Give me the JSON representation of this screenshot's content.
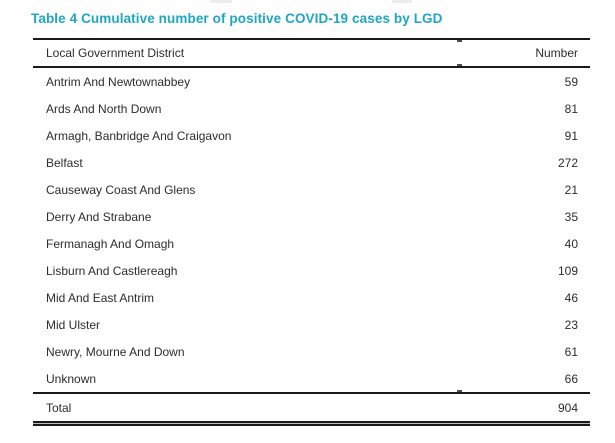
{
  "title": "Table 4 Cumulative number of positive COVID-19 cases by LGD",
  "table": {
    "header": {
      "district": "Local Government District",
      "number": "Number"
    },
    "rows": [
      {
        "district": "Antrim And Newtownabbey",
        "number": "59"
      },
      {
        "district": "Ards And North Down",
        "number": "81"
      },
      {
        "district": "Armagh, Banbridge And Craigavon",
        "number": "91"
      },
      {
        "district": "Belfast",
        "number": "272"
      },
      {
        "district": "Causeway Coast And Glens",
        "number": "21"
      },
      {
        "district": "Derry And Strabane",
        "number": "35"
      },
      {
        "district": "Fermanagh And Omagh",
        "number": "40"
      },
      {
        "district": "Lisburn And Castlereagh",
        "number": "109"
      },
      {
        "district": "Mid And East Antrim",
        "number": "46"
      },
      {
        "district": "Mid Ulster",
        "number": "23"
      },
      {
        "district": "Newry, Mourne And Down",
        "number": "61"
      },
      {
        "district": "Unknown",
        "number": "66"
      }
    ],
    "total": {
      "label": "Total",
      "number": "904"
    }
  },
  "colors": {
    "title_teal": "#20a6c3",
    "body_text": "#2d2d2d",
    "rule": "#1a1a1a"
  },
  "chart_data": {
    "type": "table",
    "title": "Table 4 Cumulative number of positive COVID-19 cases by LGD",
    "columns": [
      "Local Government District",
      "Number"
    ],
    "categories": [
      "Antrim And Newtownabbey",
      "Ards And North Down",
      "Armagh, Banbridge And Craigavon",
      "Belfast",
      "Causeway Coast And Glens",
      "Derry And Strabane",
      "Fermanagh And Omagh",
      "Lisburn And Castlereagh",
      "Mid And East Antrim",
      "Mid Ulster",
      "Newry, Mourne And Down",
      "Unknown"
    ],
    "values": [
      59,
      81,
      91,
      272,
      21,
      35,
      40,
      109,
      46,
      23,
      61,
      66
    ],
    "total": 904
  }
}
